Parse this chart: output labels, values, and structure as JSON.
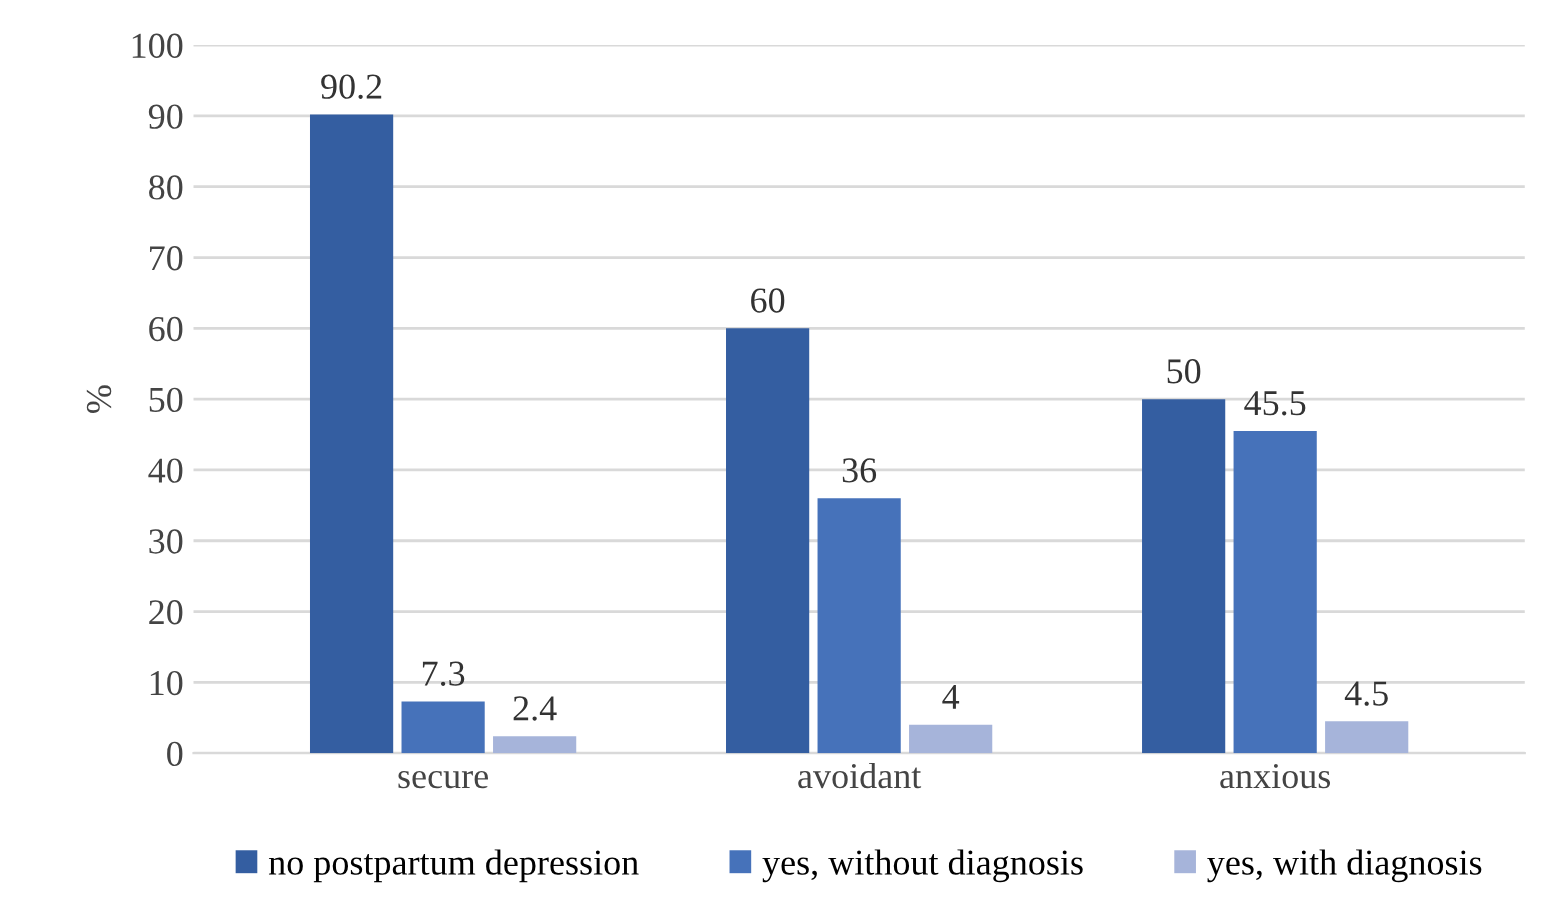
{
  "chart_data": {
    "type": "bar",
    "ylabel": "%",
    "categories": [
      "secure",
      "avoidant",
      "anxious"
    ],
    "series": [
      {
        "name": "no postpartum depression",
        "color": "#345ea1",
        "values": [
          90.2,
          60,
          50
        ]
      },
      {
        "name": "yes, without diagnosis",
        "color": "#4672ba",
        "values": [
          7.3,
          36,
          45.5
        ]
      },
      {
        "name": "yes, with diagnosis",
        "color": "#a6b4da",
        "values": [
          2.4,
          4,
          4.5
        ]
      }
    ],
    "ylim": [
      0,
      100
    ],
    "yticks": [
      0,
      10,
      20,
      30,
      40,
      50,
      60,
      70,
      80,
      90,
      100
    ],
    "grid": "y",
    "legend": "bottom",
    "data_labels": true
  }
}
